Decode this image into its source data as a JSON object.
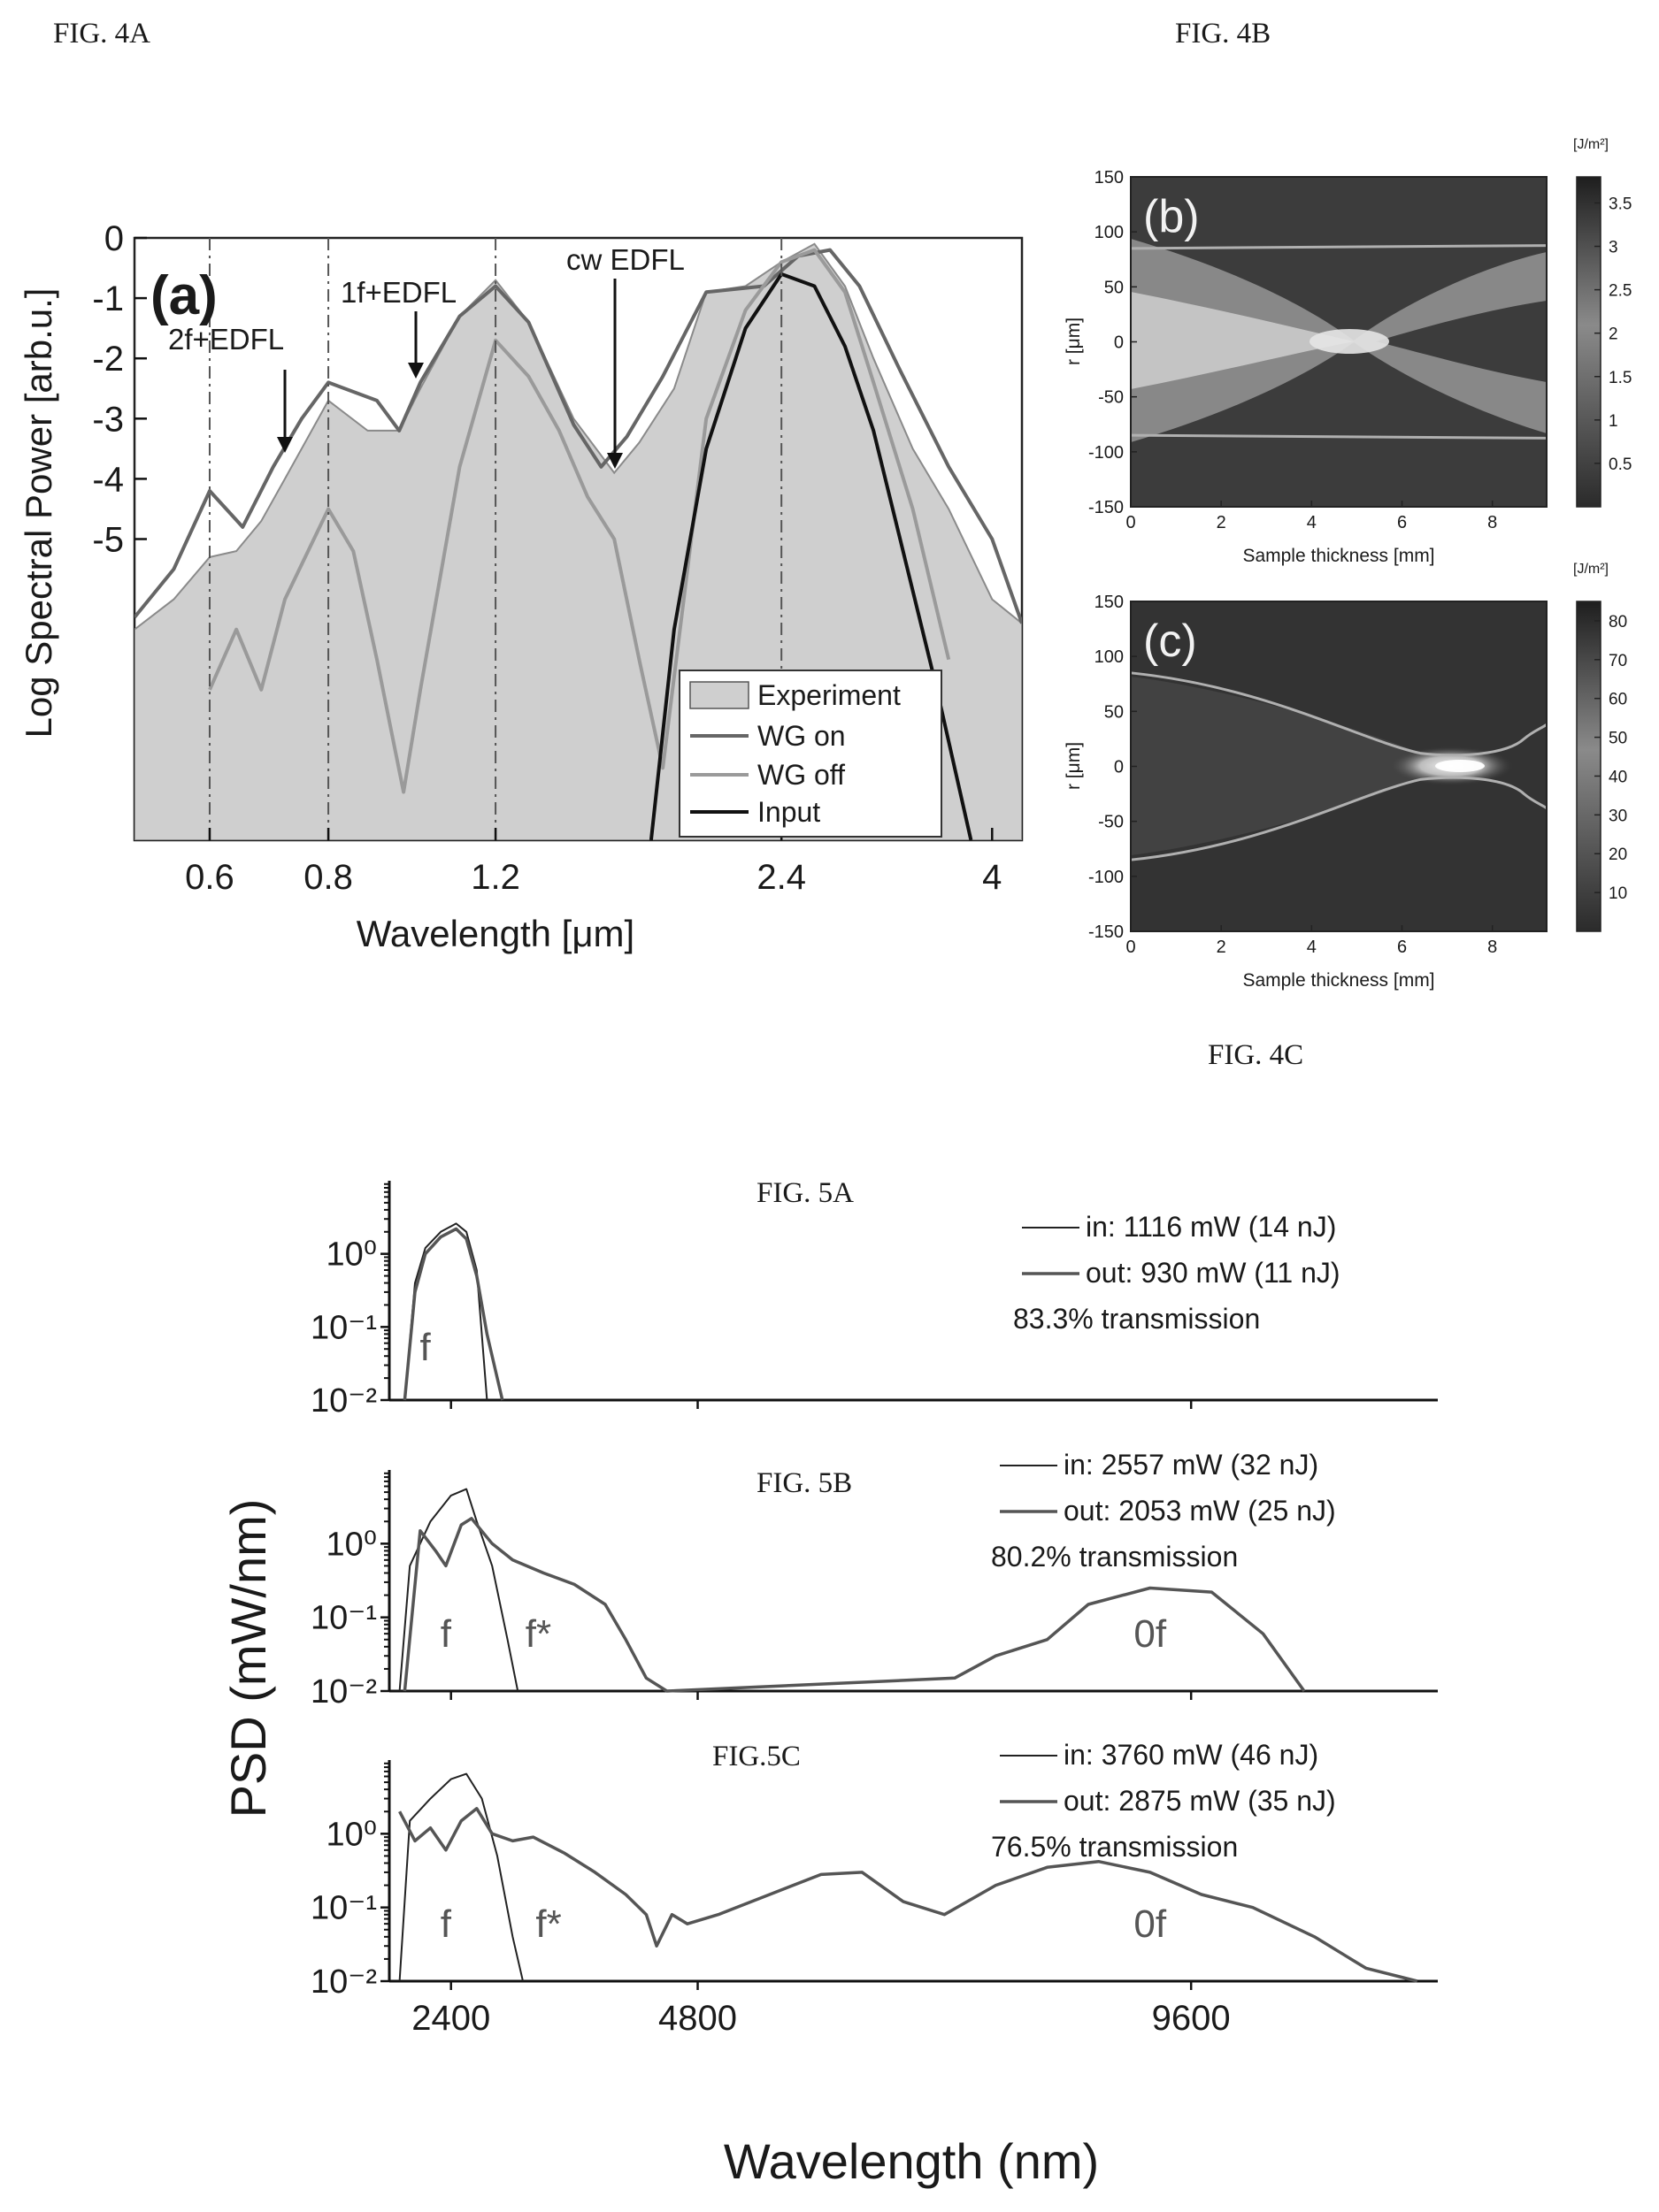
{
  "labels": {
    "fig4a": "FIG. 4A",
    "fig4b": "FIG. 4B",
    "fig4c": "FIG. 4C",
    "fig5a": "FIG. 5A",
    "fig5b": "FIG. 5B",
    "fig5c": "FIG.5C"
  },
  "chart_data": [
    {
      "id": "fig4a",
      "type": "line",
      "panel_label": "(a)",
      "xlabel": "Wavelength [μm]",
      "ylabel": "Log Spectral Power [arb.u.]",
      "x_scale": "log",
      "xlim": [
        0.5,
        4.3
      ],
      "ylim": [
        -10,
        0
      ],
      "xticks": [
        0.6,
        0.8,
        1.2,
        2.4,
        4
      ],
      "xtick_labels": [
        "0.6",
        "0.8",
        "1.2",
        "2.4",
        "4"
      ],
      "yticks": [
        0,
        -1,
        -2,
        -3,
        -4,
        -5
      ],
      "ytick_labels": [
        "0",
        "-1",
        "-2",
        "-3",
        "-4",
        "-5"
      ],
      "vlines": [
        0.6,
        0.8,
        1.2,
        2.4
      ],
      "annotations": [
        {
          "text": "2f+EDFL",
          "x": 0.68,
          "y": -3.5
        },
        {
          "text": "1f+EDFL",
          "x": 0.93,
          "y": -2.3
        },
        {
          "text": "cw EDFL",
          "x": 1.62,
          "y": -3.9
        }
      ],
      "legend": [
        "Experiment",
        "WG on",
        "WG off",
        "Input"
      ],
      "legend_position": "bottom-right",
      "series": [
        {
          "name": "Experiment",
          "kind": "area",
          "x": [
            0.5,
            0.55,
            0.6,
            0.64,
            0.68,
            0.72,
            0.8,
            0.88,
            0.95,
            1.0,
            1.1,
            1.2,
            1.3,
            1.45,
            1.6,
            1.7,
            1.85,
            2.0,
            2.2,
            2.4,
            2.6,
            2.8,
            3.0,
            3.3,
            3.6,
            4.0,
            4.3
          ],
          "y": [
            -6.5,
            -6.0,
            -5.3,
            -5.2,
            -4.7,
            -4.0,
            -2.7,
            -3.2,
            -3.2,
            -2.5,
            -1.3,
            -0.7,
            -1.4,
            -3.0,
            -3.9,
            -3.4,
            -2.5,
            -0.9,
            -0.8,
            -0.4,
            -0.1,
            -0.8,
            -2.0,
            -3.5,
            -4.5,
            -6.0,
            -6.4
          ]
        },
        {
          "name": "WG on",
          "x": [
            0.5,
            0.55,
            0.6,
            0.65,
            0.7,
            0.75,
            0.8,
            0.9,
            0.95,
            1.0,
            1.1,
            1.2,
            1.3,
            1.45,
            1.55,
            1.65,
            1.8,
            2.0,
            2.3,
            2.5,
            2.7,
            2.9,
            3.2,
            3.6,
            4.0,
            4.3
          ],
          "y": [
            -6.3,
            -5.5,
            -4.2,
            -4.8,
            -3.8,
            -3.0,
            -2.4,
            -2.7,
            -3.2,
            -2.4,
            -1.3,
            -0.8,
            -1.4,
            -3.1,
            -3.8,
            -3.3,
            -2.3,
            -0.9,
            -0.8,
            -0.3,
            -0.2,
            -0.8,
            -2.2,
            -3.8,
            -5.0,
            -6.4
          ]
        },
        {
          "name": "WG off",
          "x": [
            0.6,
            0.64,
            0.68,
            0.72,
            0.8,
            0.85,
            0.9,
            0.96,
            1.0,
            1.1,
            1.2,
            1.3,
            1.4,
            1.5,
            1.6,
            1.7,
            1.8,
            2.0,
            2.2,
            2.4,
            2.6,
            2.8,
            3.0,
            3.3,
            3.6
          ],
          "y": [
            -7.5,
            -6.5,
            -7.5,
            -6.0,
            -4.5,
            -5.2,
            -7.0,
            -9.2,
            -7.5,
            -3.8,
            -1.7,
            -2.3,
            -3.2,
            -4.3,
            -5.0,
            -7.0,
            -8.8,
            -3.0,
            -1.2,
            -0.4,
            -0.2,
            -0.9,
            -2.4,
            -4.5,
            -7.0
          ]
        },
        {
          "name": "Input",
          "x": [
            1.75,
            1.85,
            2.0,
            2.2,
            2.4,
            2.6,
            2.8,
            3.0,
            3.2,
            3.5,
            3.8
          ],
          "y": [
            -10,
            -6.5,
            -3.5,
            -1.5,
            -0.6,
            -0.8,
            -1.8,
            -3.2,
            -5.0,
            -7.5,
            -10
          ]
        }
      ]
    },
    {
      "id": "fig4b",
      "type": "heatmap",
      "panel_label": "(b)",
      "xlabel": "Sample thickness [mm]",
      "ylabel": "r [μm]",
      "xlim": [
        0,
        9.2
      ],
      "ylim": [
        -150,
        150
      ],
      "xticks": [
        0,
        2,
        4,
        6,
        8
      ],
      "yticks": [
        150,
        100,
        50,
        0,
        -50,
        -100,
        -150
      ],
      "colorbar_unit": "[J/m²]",
      "colorbar_ticks": [
        3.5,
        3,
        2.5,
        2,
        1.5,
        1,
        0.5
      ],
      "colorbar_range": [
        0,
        3.8
      ],
      "boundary_lines_r": [
        85,
        -85
      ]
    },
    {
      "id": "fig4c",
      "type": "heatmap",
      "panel_label": "(c)",
      "xlabel": "Sample thickness [mm]",
      "ylabel": "r [μm]",
      "xlim": [
        0,
        9.2
      ],
      "ylim": [
        -150,
        150
      ],
      "xticks": [
        0,
        2,
        4,
        6,
        8
      ],
      "yticks": [
        150,
        100,
        50,
        0,
        -50,
        -100,
        -150
      ],
      "colorbar_unit": "[J/m²]",
      "colorbar_ticks": [
        80,
        70,
        60,
        50,
        40,
        30,
        20,
        10
      ],
      "colorbar_range": [
        0,
        85
      ],
      "focus_position_mm": 7.2
    },
    {
      "id": "fig5",
      "type": "line",
      "ylabel": "PSD (mW/nm)",
      "xlabel": "Wavelength (nm)",
      "y_scale": "log",
      "xlim": [
        1800,
        12000
      ],
      "ylim": [
        0.01,
        10
      ],
      "xticks": [
        2400,
        4800,
        9600
      ],
      "xtick_labels": [
        "2400",
        "4800",
        "9600"
      ],
      "ytick_labels": [
        "10⁰",
        "10⁻¹",
        "10⁻²"
      ],
      "panels": [
        {
          "id": "5a",
          "legend": [
            "in: 1116 mW (14 nJ)",
            "out: 930 mW (11 nJ)",
            "83.3% transmission"
          ],
          "band_labels": [
            {
              "text": "f",
              "x": 2150,
              "y": 0.035
            }
          ],
          "series": [
            {
              "name": "in",
              "x": [
                1950,
                2050,
                2150,
                2300,
                2450,
                2550,
                2650,
                2750
              ],
              "y": [
                0.01,
                0.4,
                1.2,
                2.0,
                2.6,
                2.0,
                0.6,
                0.01
              ]
            },
            {
              "name": "out",
              "x": [
                1950,
                2050,
                2150,
                2300,
                2450,
                2550,
                2650,
                2750,
                2850,
                2900
              ],
              "y": [
                0.01,
                0.3,
                1.0,
                1.7,
                2.2,
                1.6,
                0.5,
                0.08,
                0.02,
                0.01
              ]
            }
          ]
        },
        {
          "id": "5b",
          "legend": [
            "in: 2557 mW (32 nJ)",
            "out: 2053 mW (25 nJ)",
            "80.2% transmission"
          ],
          "band_labels": [
            {
              "text": "f",
              "x": 2350,
              "y": 0.04
            },
            {
              "text": "f*",
              "x": 3250,
              "y": 0.04
            },
            {
              "text": "0f",
              "x": 9200,
              "y": 0.04
            }
          ],
          "series": [
            {
              "name": "in",
              "x": [
                1900,
                2000,
                2200,
                2400,
                2550,
                2650,
                2800,
                2950,
                3050
              ],
              "y": [
                0.01,
                0.5,
                2.0,
                4.5,
                5.5,
                2.0,
                0.5,
                0.05,
                0.01
              ]
            },
            {
              "name": "out",
              "x": [
                1950,
                2100,
                2250,
                2350,
                2500,
                2600,
                2800,
                3000,
                3300,
                3600,
                3900,
                4100,
                4300,
                4500,
                7300,
                7700,
                8200,
                8600,
                9200,
                9800,
                10300,
                10700
              ],
              "y": [
                0.01,
                1.5,
                0.8,
                0.5,
                1.8,
                2.2,
                1.0,
                0.6,
                0.4,
                0.28,
                0.15,
                0.05,
                0.015,
                0.01,
                0.015,
                0.03,
                0.05,
                0.15,
                0.25,
                0.22,
                0.06,
                0.01
              ]
            }
          ]
        },
        {
          "id": "5c",
          "legend": [
            "in: 3760 mW (46 nJ)",
            "out: 2875 mW (35 nJ)",
            "76.5% transmission"
          ],
          "band_labels": [
            {
              "text": "f",
              "x": 2350,
              "y": 0.04
            },
            {
              "text": "f*",
              "x": 3350,
              "y": 0.04
            },
            {
              "text": "0f",
              "x": 9200,
              "y": 0.04
            }
          ],
          "series": [
            {
              "name": "in",
              "x": [
                1900,
                2000,
                2200,
                2400,
                2550,
                2700,
                2850,
                3000,
                3100
              ],
              "y": [
                0.01,
                1.5,
                3.0,
                5.5,
                6.5,
                3.0,
                0.5,
                0.04,
                0.01
              ]
            },
            {
              "name": "out",
              "x": [
                1900,
                2050,
                2200,
                2350,
                2500,
                2650,
                2800,
                3000,
                3200,
                3500,
                3800,
                4100,
                4300,
                4400,
                4550,
                4700,
                5000,
                5500,
                6000,
                6400,
                6800,
                7200,
                7700,
                8200,
                8700,
                9200,
                9700,
                10200,
                10800,
                11300,
                11800
              ],
              "y": [
                2.0,
                0.8,
                1.2,
                0.6,
                1.5,
                2.2,
                1.0,
                0.8,
                0.9,
                0.55,
                0.3,
                0.15,
                0.08,
                0.03,
                0.08,
                0.06,
                0.08,
                0.15,
                0.28,
                0.3,
                0.12,
                0.08,
                0.2,
                0.35,
                0.42,
                0.3,
                0.15,
                0.1,
                0.04,
                0.015,
                0.01
              ]
            }
          ]
        }
      ]
    }
  ]
}
